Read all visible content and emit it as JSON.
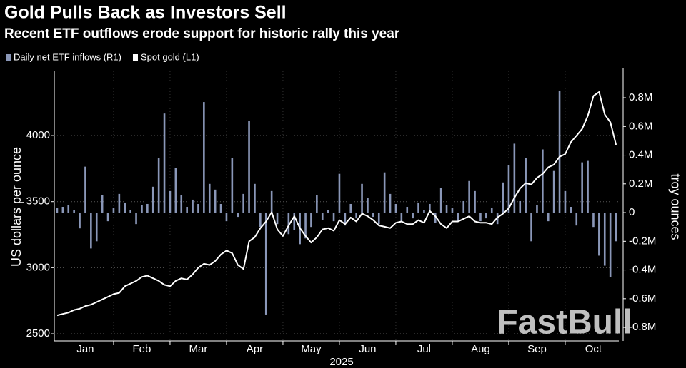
{
  "chart_data": {
    "type": "combo",
    "title": "Gold Pulls Back as Investors Sell",
    "subtitle": "Recent ETF outflows erode support for historic rally this year",
    "ylabel": "US dollars per ounce",
    "y2label": "troy ounces",
    "xlabel": "2025",
    "watermark": "FastBull",
    "categories": [
      null,
      null,
      null,
      null,
      null,
      "Jan",
      null,
      null,
      null,
      null,
      null,
      null,
      null,
      null,
      null,
      "Feb",
      null,
      null,
      null,
      null,
      null,
      null,
      null,
      null,
      null,
      "Mar",
      null,
      null,
      null,
      null,
      null,
      null,
      null,
      null,
      null,
      "Apr",
      null,
      null,
      null,
      null,
      null,
      null,
      null,
      null,
      null,
      "May",
      null,
      null,
      null,
      null,
      null,
      null,
      null,
      null,
      null,
      "Jun",
      null,
      null,
      null,
      null,
      null,
      null,
      null,
      null,
      null,
      "Jul",
      null,
      null,
      null,
      null,
      null,
      null,
      null,
      null,
      null,
      "Aug",
      null,
      null,
      null,
      null,
      null,
      null,
      null,
      null,
      null,
      "Sep",
      null,
      null,
      null,
      null,
      null,
      null,
      null,
      null,
      null,
      "Oct",
      null,
      null,
      null,
      null
    ],
    "series": [
      {
        "name": "Daily net ETF inflows (R1)",
        "type": "bar",
        "axis": "y2",
        "color": "#8a97b8",
        "values": [
          30000,
          40000,
          50000,
          20000,
          -110000,
          320000,
          -250000,
          -200000,
          120000,
          -60000,
          30000,
          130000,
          70000,
          20000,
          -80000,
          50000,
          60000,
          180000,
          380000,
          690000,
          150000,
          310000,
          120000,
          40000,
          90000,
          60000,
          770000,
          200000,
          160000,
          60000,
          -60000,
          380000,
          -30000,
          130000,
          640000,
          200000,
          -100000,
          -710000,
          150000,
          -80000,
          0,
          -150000,
          -120000,
          -220000,
          -180000,
          -100000,
          120000,
          -50000,
          20000,
          -60000,
          270000,
          -90000,
          60000,
          -40000,
          200000,
          100000,
          -30000,
          -80000,
          280000,
          130000,
          60000,
          -60000,
          40000,
          -40000,
          70000,
          20000,
          60000,
          -70000,
          170000,
          50000,
          30000,
          -60000,
          80000,
          220000,
          150000,
          -60000,
          -40000,
          30000,
          -80000,
          210000,
          330000,
          480000,
          80000,
          380000,
          -200000,
          50000,
          440000,
          -60000,
          290000,
          850000,
          150000,
          40000,
          -90000,
          350000,
          360000,
          -100000,
          -300000,
          -370000,
          -450000,
          -200000
        ]
      },
      {
        "name": "Spot gold (L1)",
        "type": "line",
        "color": "#ffffff",
        "values": [
          2640,
          2650,
          2660,
          2680,
          2690,
          2710,
          2720,
          2740,
          2760,
          2780,
          2800,
          2810,
          2860,
          2880,
          2900,
          2930,
          2940,
          2920,
          2900,
          2870,
          2860,
          2900,
          2920,
          2910,
          2950,
          3000,
          3030,
          3020,
          3050,
          3100,
          3130,
          3110,
          3020,
          2990,
          3200,
          3230,
          3300,
          3350,
          3420,
          3290,
          3240,
          3320,
          3390,
          3300,
          3240,
          3190,
          3230,
          3290,
          3300,
          3280,
          3360,
          3330,
          3380,
          3350,
          3410,
          3390,
          3360,
          3320,
          3310,
          3300,
          3340,
          3350,
          3330,
          3330,
          3360,
          3340,
          3430,
          3390,
          3330,
          3300,
          3350,
          3350,
          3370,
          3390,
          3350,
          3340,
          3340,
          3330,
          3380,
          3410,
          3450,
          3530,
          3600,
          3640,
          3630,
          3680,
          3710,
          3760,
          3780,
          3840,
          3860,
          3950,
          4000,
          4050,
          4150,
          4300,
          4330,
          4160,
          4100,
          3930
        ]
      }
    ],
    "ylim": [
      2446,
      4486
    ],
    "yticks": [
      2500,
      3000,
      3500,
      4000
    ],
    "y2lim": [
      -894000,
      984000
    ],
    "y2ticks": [
      {
        "value": 800000,
        "label": "0.8M"
      },
      {
        "value": 600000,
        "label": "0.6M"
      },
      {
        "value": 400000,
        "label": "0.4M"
      },
      {
        "value": 200000,
        "label": "0.2M"
      },
      0,
      {
        "value": -200000,
        "label": "-0.2M"
      },
      {
        "value": -400000,
        "label": "-0.4M"
      },
      {
        "value": -600000,
        "label": "-0.6M"
      },
      {
        "value": -800000,
        "label": "-0.8M"
      }
    ],
    "grid": true
  }
}
